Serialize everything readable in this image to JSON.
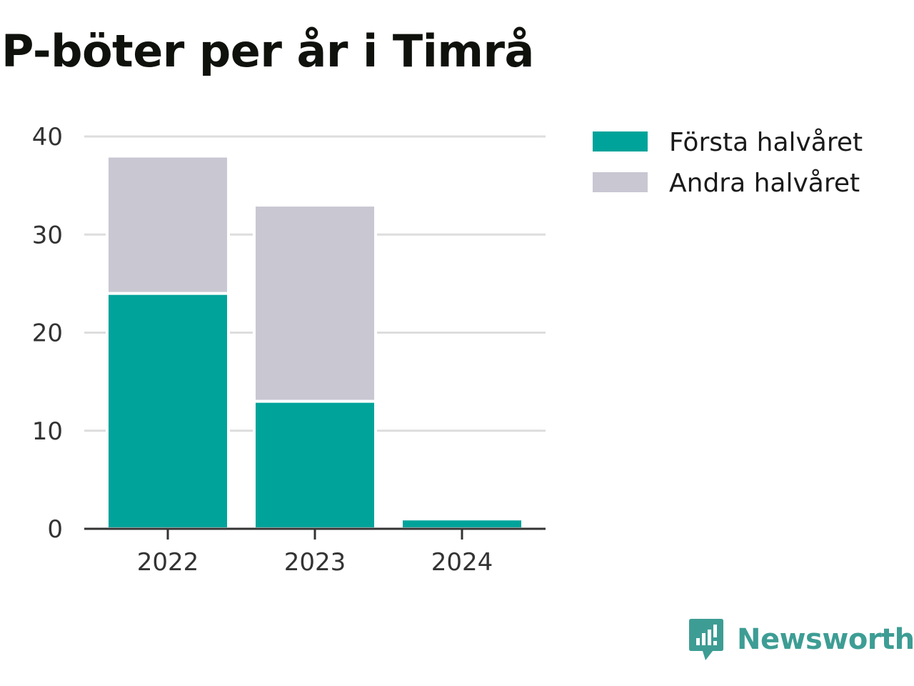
{
  "chart_data": {
    "type": "bar",
    "stacked": true,
    "title": "P-böter per år i Timrå",
    "categories": [
      "2022",
      "2023",
      "2024"
    ],
    "series": [
      {
        "name": "Första halvåret",
        "values": [
          24,
          13,
          1
        ],
        "color": "#00a39a"
      },
      {
        "name": "Andra halvåret",
        "values": [
          14,
          20,
          0
        ],
        "color": "#c8c7d2"
      }
    ],
    "ylim": [
      0,
      40
    ],
    "yticks": [
      0,
      10,
      20,
      30,
      40
    ],
    "xlabel": "",
    "ylabel": "",
    "grid": true,
    "legend": "top-right"
  },
  "brand": {
    "name": "Newsworthy",
    "icon": "newsworthy-logo-icon",
    "color": "#3d9d94"
  }
}
